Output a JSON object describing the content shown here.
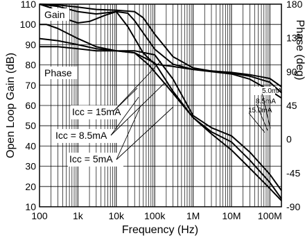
{
  "chart_data": {
    "type": "line",
    "xlabel": "Frequency (Hz)",
    "ylabel_left": "Open Loop Gain (dB)",
    "ylabel_right": "Phase (deg)",
    "x_scale": "log",
    "x_ticks": [
      100,
      1000,
      10000,
      100000,
      1000000,
      10000000,
      100000000
    ],
    "x_tick_labels": [
      "100",
      "1k",
      "10k",
      "100k",
      "1M",
      "10M",
      "100M"
    ],
    "xlim": [
      100,
      200000000
    ],
    "ylim_left": [
      10,
      110
    ],
    "y_ticks_left": [
      10,
      20,
      30,
      40,
      50,
      60,
      70,
      80,
      90,
      100,
      110
    ],
    "ylim_right": [
      -90,
      180
    ],
    "y_ticks_right": [
      -90,
      -45,
      0,
      45,
      90,
      135,
      180
    ],
    "grid": true,
    "annotations": [
      "Gain",
      "Phase",
      "Icc = 15mA",
      "Icc = 8.5mA",
      "Icc = 5mA",
      "5.0mA",
      "8.5mA",
      "15.0mA"
    ],
    "gain_series": [
      {
        "name": "Icc = 5mA",
        "x": [
          100,
          150,
          300,
          1000,
          3000,
          10000,
          30000,
          70000,
          200000,
          1000000,
          3000000,
          10000000,
          30000000,
          100000000,
          200000000
        ],
        "y": [
          100,
          100,
          98,
          93,
          89,
          87,
          86,
          80,
          70,
          54,
          46,
          38,
          29,
          19,
          13
        ]
      },
      {
        "name": "Icc = 8.5mA",
        "x": [
          100,
          300,
          1000,
          3000,
          10000,
          30000,
          100000,
          300000,
          1000000,
          3000000,
          10000000,
          30000000,
          100000000,
          200000000
        ],
        "y": [
          93,
          92,
          90,
          88,
          87,
          86,
          81,
          67,
          54,
          47,
          42,
          33,
          22,
          14
        ]
      },
      {
        "name": "Icc = 15mA",
        "x": [
          100,
          300,
          1000,
          3000,
          10000,
          30000,
          100000,
          300000,
          1000000,
          3000000,
          10000000,
          30000000,
          100000000,
          200000000
        ],
        "y": [
          89,
          89,
          88,
          87,
          87,
          87,
          85,
          73,
          55,
          49,
          45,
          37,
          26,
          18
        ]
      }
    ],
    "phase_series": [
      {
        "name": "Icc = 5mA",
        "x": [
          100,
          200,
          500,
          1000,
          2000,
          5000,
          10000,
          20000,
          50000,
          100000,
          300000,
          1000000,
          3000000,
          10000000,
          30000000,
          100000000,
          200000000
        ],
        "y": [
          180,
          175,
          160,
          155,
          157,
          165,
          170,
          150,
          115,
          100,
          97,
          93,
          90,
          87,
          80,
          65,
          55
        ]
      },
      {
        "name": "Icc = 8.5mA",
        "x": [
          100,
          300,
          1000,
          3000,
          10000,
          20000,
          30000,
          100000,
          300000,
          1000000,
          3000000,
          10000000,
          30000000,
          100000000,
          200000000
        ],
        "y": [
          180,
          177,
          170,
          167,
          170,
          168,
          158,
          120,
          100,
          93,
          91,
          88,
          84,
          76,
          62
        ]
      },
      {
        "name": "Icc = 15mA",
        "x": [
          100,
          300,
          1000,
          3000,
          10000,
          30000,
          50000,
          100000,
          300000,
          1000000,
          3000000,
          10000000,
          30000000,
          100000000,
          200000000
        ],
        "y": [
          180,
          179,
          176,
          173,
          172,
          170,
          162,
          140,
          110,
          95,
          91,
          89,
          86,
          81,
          70
        ]
      }
    ]
  }
}
